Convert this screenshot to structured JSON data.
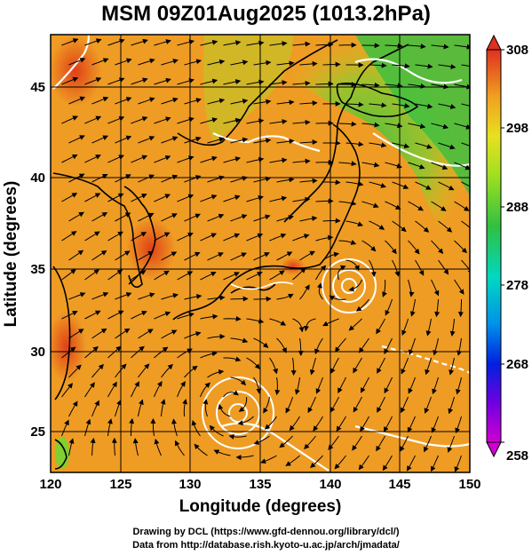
{
  "title": "MSM 09Z01Aug2025 (1013.2hPa)",
  "axes": {
    "xlabel": "Longitude (degrees)",
    "ylabel": "Latitude  (degrees)",
    "xticks": [
      "120",
      "125",
      "130",
      "135",
      "140",
      "145",
      "150"
    ],
    "yticks": [
      "25",
      "30",
      "35",
      "40",
      "45"
    ]
  },
  "colorbar": {
    "ticks": [
      "308",
      "298",
      "288",
      "278",
      "268",
      "258"
    ],
    "min_label": "258",
    "max_label": "308"
  },
  "credits": {
    "line1": "Drawing by DCL (https://www.gfd-dennou.org/library/dcl/)",
    "line2": "Data from http://database.rish.kyoto-u.ac.jp/arch/jmadata/"
  },
  "chart_data": {
    "type": "heatmap",
    "title": "MSM 09Z01Aug2025 (1013.2hPa)",
    "xlabel": "Longitude (degrees)",
    "ylabel": "Latitude  (degrees)",
    "xlim": [
      120,
      150
    ],
    "ylim": [
      22.4,
      47.6
    ],
    "colorbar_range": [
      258,
      308
    ],
    "colors": {
      "warm": "#f0a020",
      "hot": "#e05020",
      "cool": "#40c040",
      "coast": "#000000",
      "contour": "#ffffff",
      "stream": "#000000"
    },
    "features": [
      {
        "kind": "cyclone",
        "lon": 141.2,
        "lat": 33.9
      },
      {
        "kind": "cyclone",
        "lon": 133.0,
        "lat": 26.5
      }
    ]
  }
}
